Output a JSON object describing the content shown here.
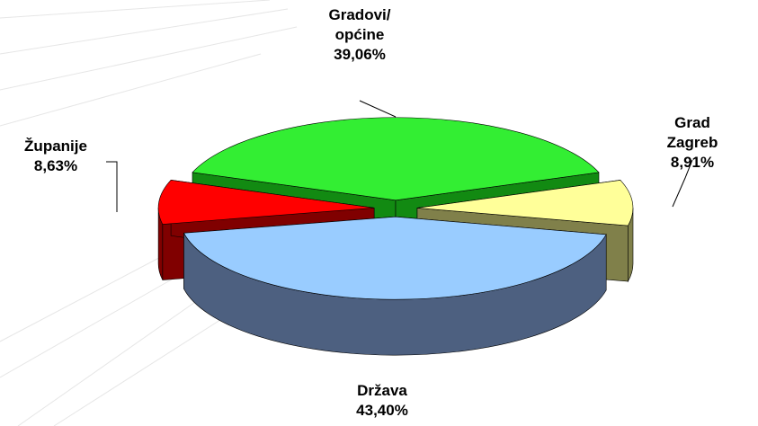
{
  "chart_data": {
    "type": "pie3d",
    "categories": [
      "Gradovi/\nopćine",
      "Grad Zagreb",
      "Država",
      "Županije"
    ],
    "values": [
      39.06,
      8.91,
      43.4,
      8.63
    ],
    "value_labels": [
      "39,06%",
      "8,91%",
      "43,40%",
      "8,63%"
    ],
    "colors": [
      "#33ee33",
      "#ffff99",
      "#99ccff",
      "#ff0000"
    ],
    "side_colors": [
      "#128a12",
      "#80804a",
      "#4d6080",
      "#800000"
    ]
  }
}
